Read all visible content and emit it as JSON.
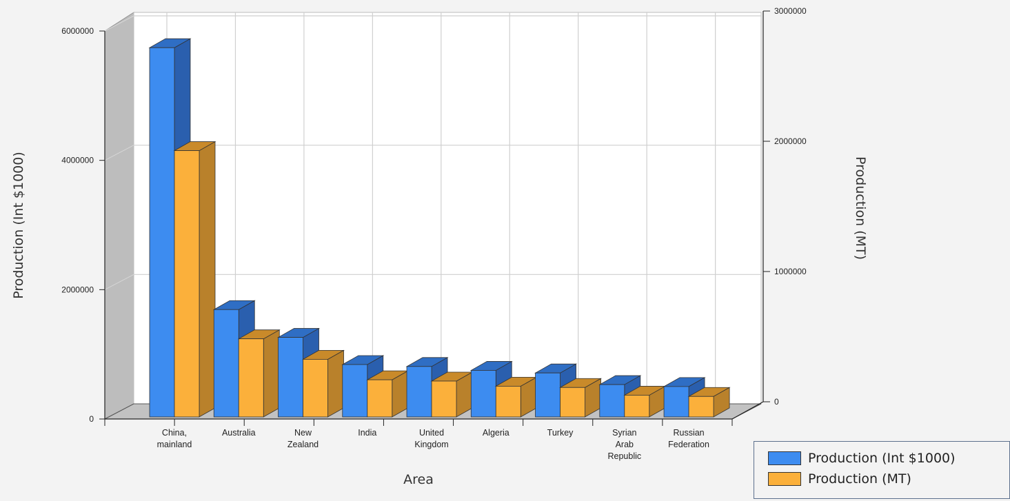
{
  "chart_data": {
    "type": "bar",
    "xlabel": "Area",
    "ylabel_left": "Production (Int $1000)",
    "ylabel_right": "Production (MT)",
    "ylim_left": [
      0,
      6000000
    ],
    "ylim_right": [
      0,
      3000000
    ],
    "yticks_left": [
      "0",
      "2000000",
      "4000000",
      "6000000"
    ],
    "yticks_right": [
      "0",
      "1000000",
      "2000000",
      "3000000"
    ],
    "grid": true,
    "legend_position": "bottom-right",
    "categories": [
      [
        "China,",
        "mainland"
      ],
      [
        "Australia"
      ],
      [
        "New",
        "Zealand"
      ],
      [
        "India"
      ],
      [
        "United",
        "Kingdom"
      ],
      [
        "Algeria"
      ],
      [
        "Turkey"
      ],
      [
        "Syrian",
        "Arab",
        "Republic"
      ],
      [
        "Russian",
        "Federation"
      ]
    ],
    "series": [
      {
        "name": "Production (Int $1000)",
        "axis": "left",
        "color": "#3d8cf0",
        "top_color": "#2f6ec4",
        "side_color": "#2a5fae",
        "values": [
          5710000,
          1660000,
          1230000,
          810000,
          780000,
          720000,
          680000,
          500000,
          470000
        ]
      },
      {
        "name": "Production (MT)",
        "axis": "right",
        "color": "#fbb03b",
        "top_color": "#c98a2a",
        "side_color": "#b9812b",
        "values": [
          2080000,
          610000,
          450000,
          290000,
          280000,
          240000,
          230000,
          170000,
          160000
        ]
      }
    ]
  }
}
